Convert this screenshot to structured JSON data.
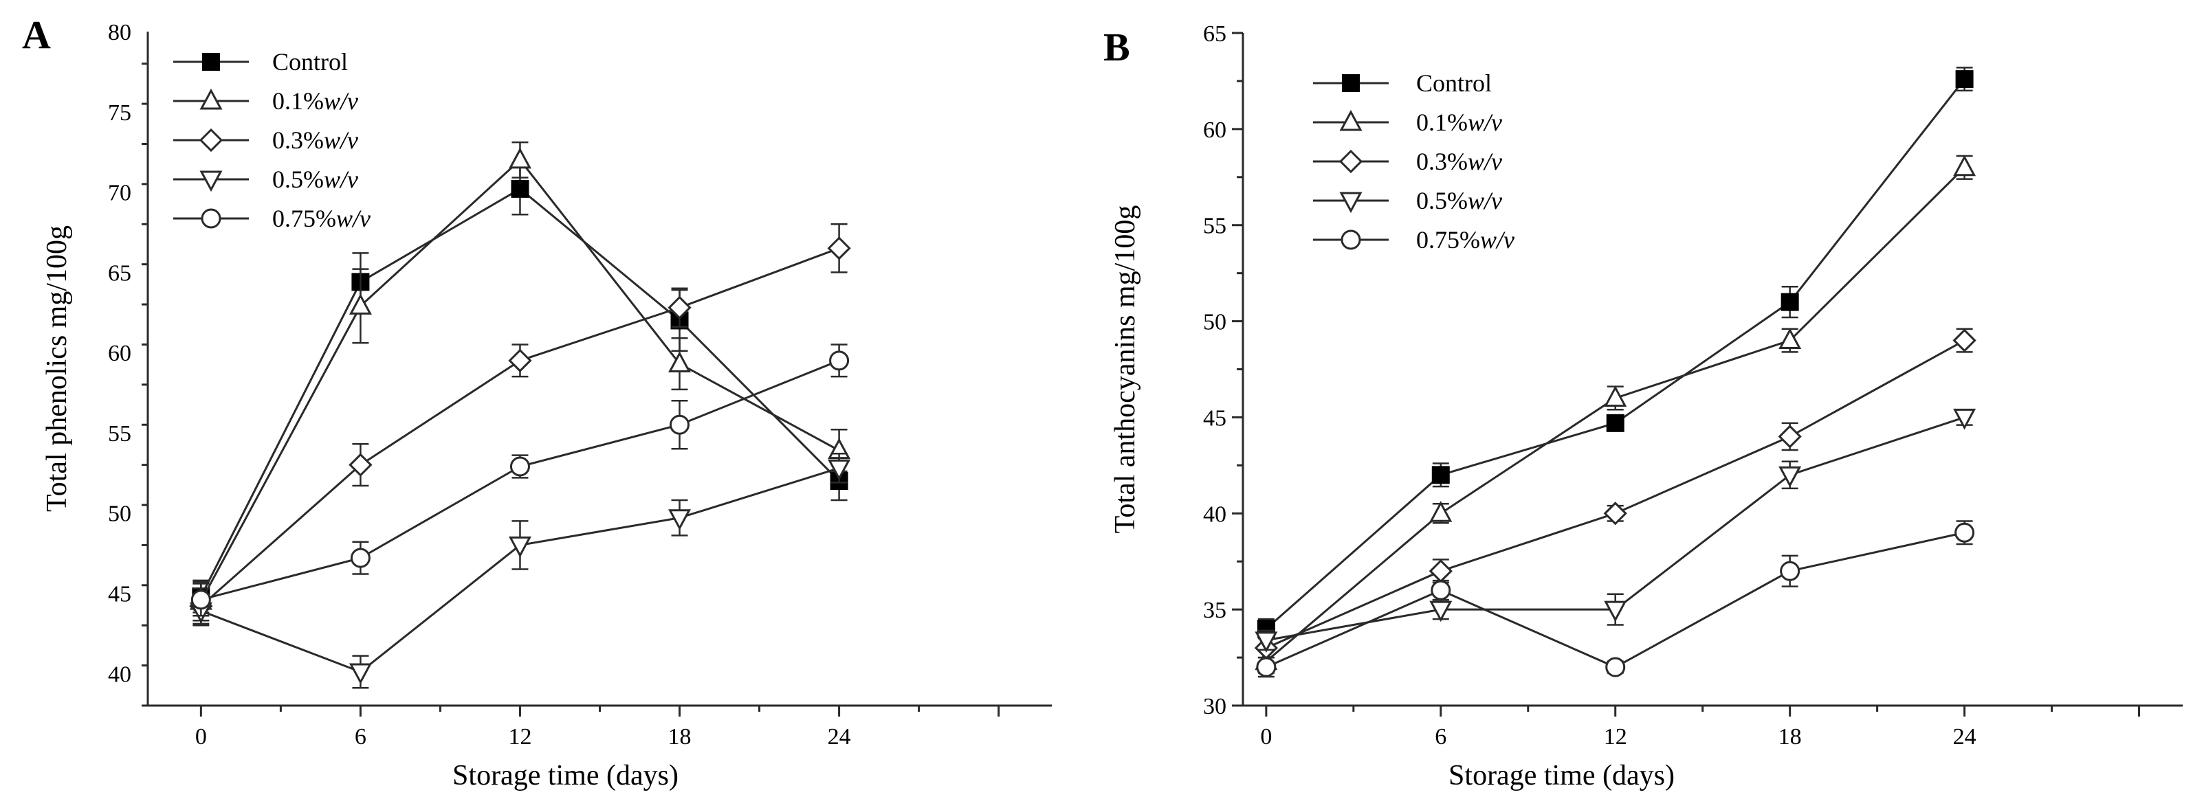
{
  "chart_data": [
    {
      "panel_label": "A",
      "type": "line",
      "xlabel": "Storage time (days)",
      "ylabel": "Total phenolics mg/100g",
      "xlim": [
        -2,
        32
      ],
      "ylim": [
        38,
        80
      ],
      "x_ticks": [
        0,
        6,
        12,
        18,
        24
      ],
      "y_ticks": [
        40,
        45,
        50,
        55,
        60,
        65,
        70,
        75,
        80
      ],
      "legend_position": "top-left",
      "x": [
        0,
        6,
        12,
        18,
        24
      ],
      "series": [
        {
          "name": "Control",
          "unit": "",
          "marker": "square-filled",
          "values": [
            44.8,
            64.4,
            70.2,
            62.0,
            52.0
          ],
          "errors": [
            1.0,
            1.8,
            1.6,
            1.9,
            1.2
          ]
        },
        {
          "name": "0.1%",
          "unit": "w/v",
          "marker": "triangle-up",
          "values": [
            44.5,
            62.9,
            72.0,
            59.3,
            53.9
          ],
          "errors": [
            1.2,
            2.3,
            1.1,
            1.6,
            1.3
          ]
        },
        {
          "name": "0.3%",
          "unit": "w/v",
          "marker": "diamond",
          "values": [
            44.2,
            53.0,
            59.5,
            62.8,
            66.5
          ],
          "errors": [
            1.1,
            1.3,
            1.0,
            1.2,
            1.5
          ]
        },
        {
          "name": "0.5%",
          "unit": "w/v",
          "marker": "triangle-down",
          "values": [
            43.9,
            40.1,
            48.0,
            49.7,
            52.8
          ],
          "errors": [
            0.9,
            1.0,
            1.5,
            1.1,
            0.9
          ]
        },
        {
          "name": "0.75%",
          "unit": "w/v",
          "marker": "circle",
          "values": [
            44.6,
            47.2,
            52.9,
            55.5,
            59.5
          ],
          "errors": [
            1.0,
            1.0,
            0.7,
            1.5,
            1.0
          ]
        }
      ]
    },
    {
      "panel_label": "B",
      "type": "line",
      "xlabel": "Storage time (days)",
      "ylabel": "Total anthocyanins mg/100g",
      "xlim": [
        -0.8,
        31.5
      ],
      "ylim": [
        30,
        65
      ],
      "x_ticks": [
        0,
        6,
        12,
        18,
        24
      ],
      "y_ticks": [
        30,
        35,
        40,
        45,
        50,
        55,
        60,
        65
      ],
      "legend_position": "top-left",
      "x": [
        0,
        6,
        12,
        18,
        24
      ],
      "series": [
        {
          "name": "Control",
          "unit": "",
          "marker": "square-filled",
          "values": [
            34.0,
            42.0,
            44.7,
            51.0,
            62.6
          ],
          "errors": [
            0.5,
            0.6,
            0.4,
            0.8,
            0.6
          ]
        },
        {
          "name": "0.1%",
          "unit": "w/v",
          "marker": "triangle-up",
          "values": [
            32.3,
            40.0,
            46.0,
            49.0,
            58.0
          ],
          "errors": [
            0.6,
            0.5,
            0.6,
            0.6,
            0.6
          ]
        },
        {
          "name": "0.3%",
          "unit": "w/v",
          "marker": "diamond",
          "values": [
            33.0,
            37.0,
            40.0,
            44.0,
            49.0
          ],
          "errors": [
            0.5,
            0.6,
            0.4,
            0.7,
            0.6
          ]
        },
        {
          "name": "0.5%",
          "unit": "w/v",
          "marker": "triangle-down",
          "values": [
            33.4,
            35.0,
            35.0,
            42.0,
            45.0
          ],
          "errors": [
            0.5,
            0.5,
            0.8,
            0.7,
            0.4
          ]
        },
        {
          "name": "0.75%",
          "unit": "w/v",
          "marker": "circle",
          "values": [
            32.0,
            36.0,
            32.0,
            37.0,
            39.0
          ],
          "errors": [
            0.5,
            0.5,
            0.3,
            0.8,
            0.6
          ]
        }
      ]
    }
  ]
}
